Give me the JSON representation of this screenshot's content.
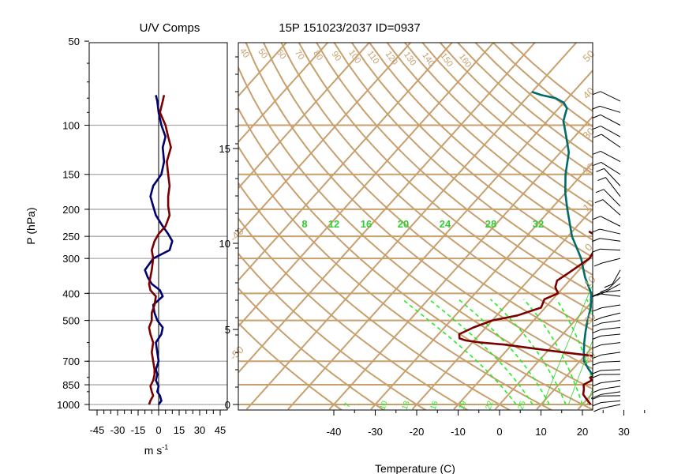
{
  "chart_data": [
    {
      "type": "line",
      "title": "U/V Comps",
      "xlabel": "m s",
      "xlabel_exponent": "-1",
      "ylabel": "P (hPa)",
      "x_ticks": [
        "-45",
        "-30",
        "-15",
        "0",
        "15",
        "30",
        "45"
      ],
      "y_ticks": [
        "50",
        "100",
        "150",
        "200",
        "250",
        "300",
        "400",
        "500",
        "700",
        "850",
        "1000"
      ],
      "xlim": [
        -50,
        50
      ],
      "ylim": [
        1000,
        50
      ],
      "y_scale": "log",
      "grid": true,
      "series": [
        {
          "color": "#00006e",
          "p": [
            1000,
            970,
            930,
            900,
            860,
            820,
            780,
            750,
            700,
            650,
            600,
            560,
            530,
            500,
            470,
            440,
            410,
            390,
            370,
            350,
            330,
            300,
            280,
            260,
            245,
            230,
            210,
            195,
            180,
            165,
            150,
            135,
            120,
            110,
            100,
            90,
            82,
            78
          ],
          "values": [
            0,
            2,
            1,
            -1,
            0,
            -2,
            -1,
            -2,
            0,
            -1,
            -2,
            2,
            3,
            -1,
            -3,
            -4,
            3,
            1,
            -5,
            -8,
            -10,
            -4,
            8,
            10,
            7,
            3,
            -2,
            -4,
            -6,
            -4,
            2,
            4,
            3,
            5,
            2,
            0,
            -1,
            -2
          ]
        },
        {
          "color": "#7a0000",
          "p": [
            1000,
            970,
            930,
            900,
            860,
            820,
            780,
            750,
            700,
            650,
            600,
            560,
            530,
            500,
            470,
            440,
            410,
            390,
            370,
            350,
            330,
            300,
            280,
            260,
            245,
            230,
            210,
            195,
            180,
            165,
            150,
            135,
            120,
            110,
            100,
            90,
            82,
            78
          ],
          "values": [
            -7,
            -6,
            -4,
            -5,
            -6,
            -4,
            -3,
            -3,
            -4,
            -5,
            -4,
            -6,
            -7,
            -5,
            -5,
            -3,
            -2,
            -6,
            -7,
            -6,
            -5,
            -4,
            -5,
            -3,
            0,
            5,
            8,
            7,
            7,
            8,
            7,
            6,
            9,
            7,
            5,
            1,
            3,
            4
          ]
        }
      ]
    },
    {
      "type": "line",
      "title": "15P 151023/2037 ID=0937",
      "xlabel": "Temperature (C)",
      "x_ticks": [
        "-40",
        "-30",
        "-20",
        "-10",
        "0",
        "10",
        "20",
        "30"
      ],
      "xlim": [
        -43,
        40
      ],
      "height_ticks": [
        "0",
        "5",
        "10",
        "15"
      ],
      "dry_adiabat_labels": [
        "40",
        "50",
        "60",
        "70",
        "80",
        "90",
        "100",
        "110",
        "120",
        "130",
        "140",
        "150",
        "160"
      ],
      "isotherm_labels": [
        "-50",
        "-40",
        "-30",
        "-20",
        "-10",
        "0",
        "10",
        "20",
        "30",
        "40",
        "50"
      ],
      "mixing_ratio_labels": [
        "8",
        "12",
        "16",
        "20",
        "24",
        "28",
        "32"
      ],
      "moist_adiabat_labels": [
        "7",
        "10",
        "13",
        "16",
        "19",
        "22",
        "25"
      ],
      "colors": {
        "grid": "#c8a06e",
        "mixing_ratio": "#33cc33",
        "moist_adiabat": "#22ee22"
      },
      "series": [
        {
          "color": "#006b6b",
          "p": [
            1000,
            975,
            950,
            925,
            900,
            875,
            850,
            800,
            750,
            700,
            650,
            600,
            550,
            500,
            450,
            400,
            350,
            300,
            250,
            200,
            175,
            150,
            125,
            110,
            100,
            97,
            92,
            87,
            83,
            80,
            78,
            76
          ],
          "values": [
            26,
            23,
            21,
            22,
            23,
            21,
            20,
            17,
            14,
            11,
            9,
            7,
            5,
            3,
            1,
            -2,
            -7,
            -12,
            -19,
            -26,
            -30,
            -34,
            -38,
            -42,
            -45,
            -46,
            -47,
            -48,
            -50,
            -53,
            -57,
            -60
          ]
        },
        {
          "color": "#7a0000",
          "p": [
            1000,
            960,
            920,
            880,
            850,
            820,
            800,
            780,
            750,
            700,
            670,
            650,
            630,
            610,
            600,
            590,
            580,
            560,
            530,
            500,
            480,
            450,
            420,
            400,
            380,
            360,
            340,
            300,
            270,
            250,
            240
          ],
          "values": [
            22,
            20,
            18,
            17,
            16,
            17,
            16,
            18,
            18,
            19,
            12,
            4,
            -4,
            -12,
            -18,
            -22,
            -24,
            -25,
            -23,
            -20,
            -15,
            -11,
            -12,
            -10,
            -12,
            -13,
            -12,
            -10,
            -11,
            -13,
            -16
          ]
        }
      ]
    }
  ]
}
